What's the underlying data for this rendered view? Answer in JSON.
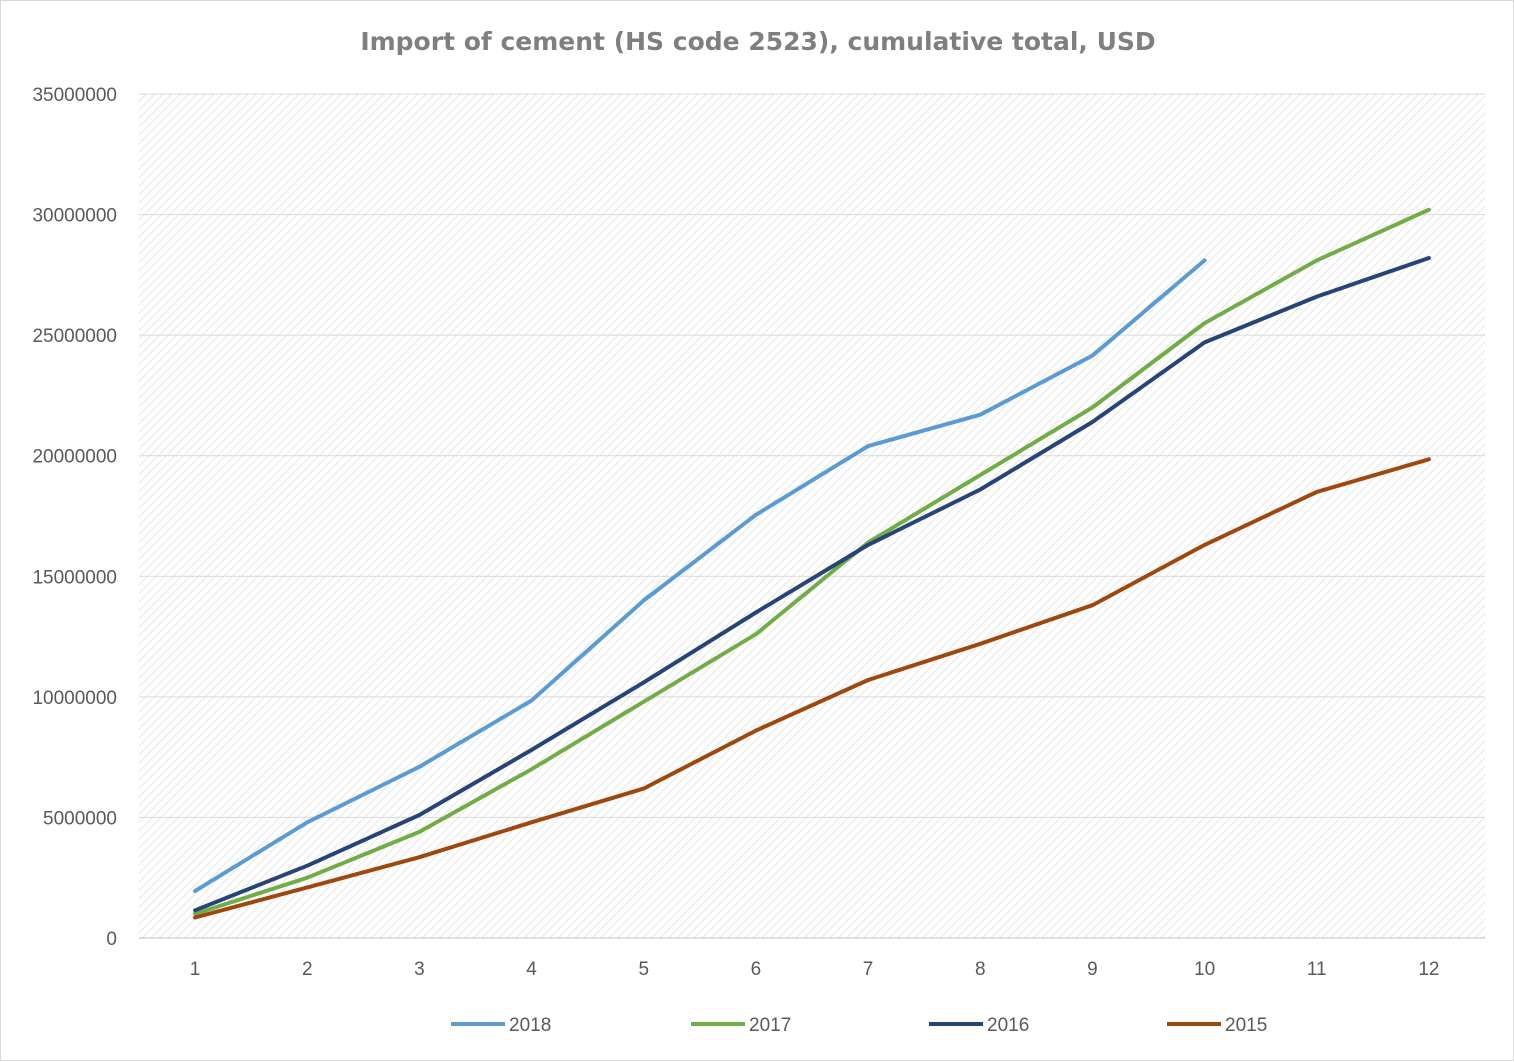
{
  "chart_data": {
    "type": "line",
    "title": "Import of cement (HS code 2523), cumulative total, USD",
    "xlabel": "",
    "ylabel": "",
    "categories": [
      "1",
      "2",
      "3",
      "4",
      "5",
      "6",
      "7",
      "8",
      "9",
      "10",
      "11",
      "12"
    ],
    "ylim": [
      0,
      35000000
    ],
    "yticks": [
      "0",
      "5000000",
      "10000000",
      "15000000",
      "20000000",
      "25000000",
      "30000000",
      "35000000"
    ],
    "grid": true,
    "legend_position": "bottom",
    "series": [
      {
        "name": "2018",
        "color": "#5b9bd5",
        "values": [
          1950000,
          4800000,
          7100000,
          9850000,
          14000000,
          17550000,
          20400000,
          21700000,
          24150000,
          28100000,
          null,
          null
        ]
      },
      {
        "name": "2017",
        "color": "#70ad47",
        "values": [
          1000000,
          2500000,
          4400000,
          7000000,
          9800000,
          12600000,
          16400000,
          19200000,
          22000000,
          25500000,
          28100000,
          30200000
        ]
      },
      {
        "name": "2016",
        "color": "#264478",
        "values": [
          1150000,
          3000000,
          5100000,
          7800000,
          10600000,
          13500000,
          16300000,
          18600000,
          21400000,
          24700000,
          26600000,
          28200000
        ]
      },
      {
        "name": "2015",
        "color": "#9e480e",
        "values": [
          850000,
          2100000,
          3350000,
          4800000,
          6200000,
          8600000,
          10700000,
          12200000,
          13800000,
          16300000,
          18500000,
          19850000
        ]
      }
    ]
  }
}
